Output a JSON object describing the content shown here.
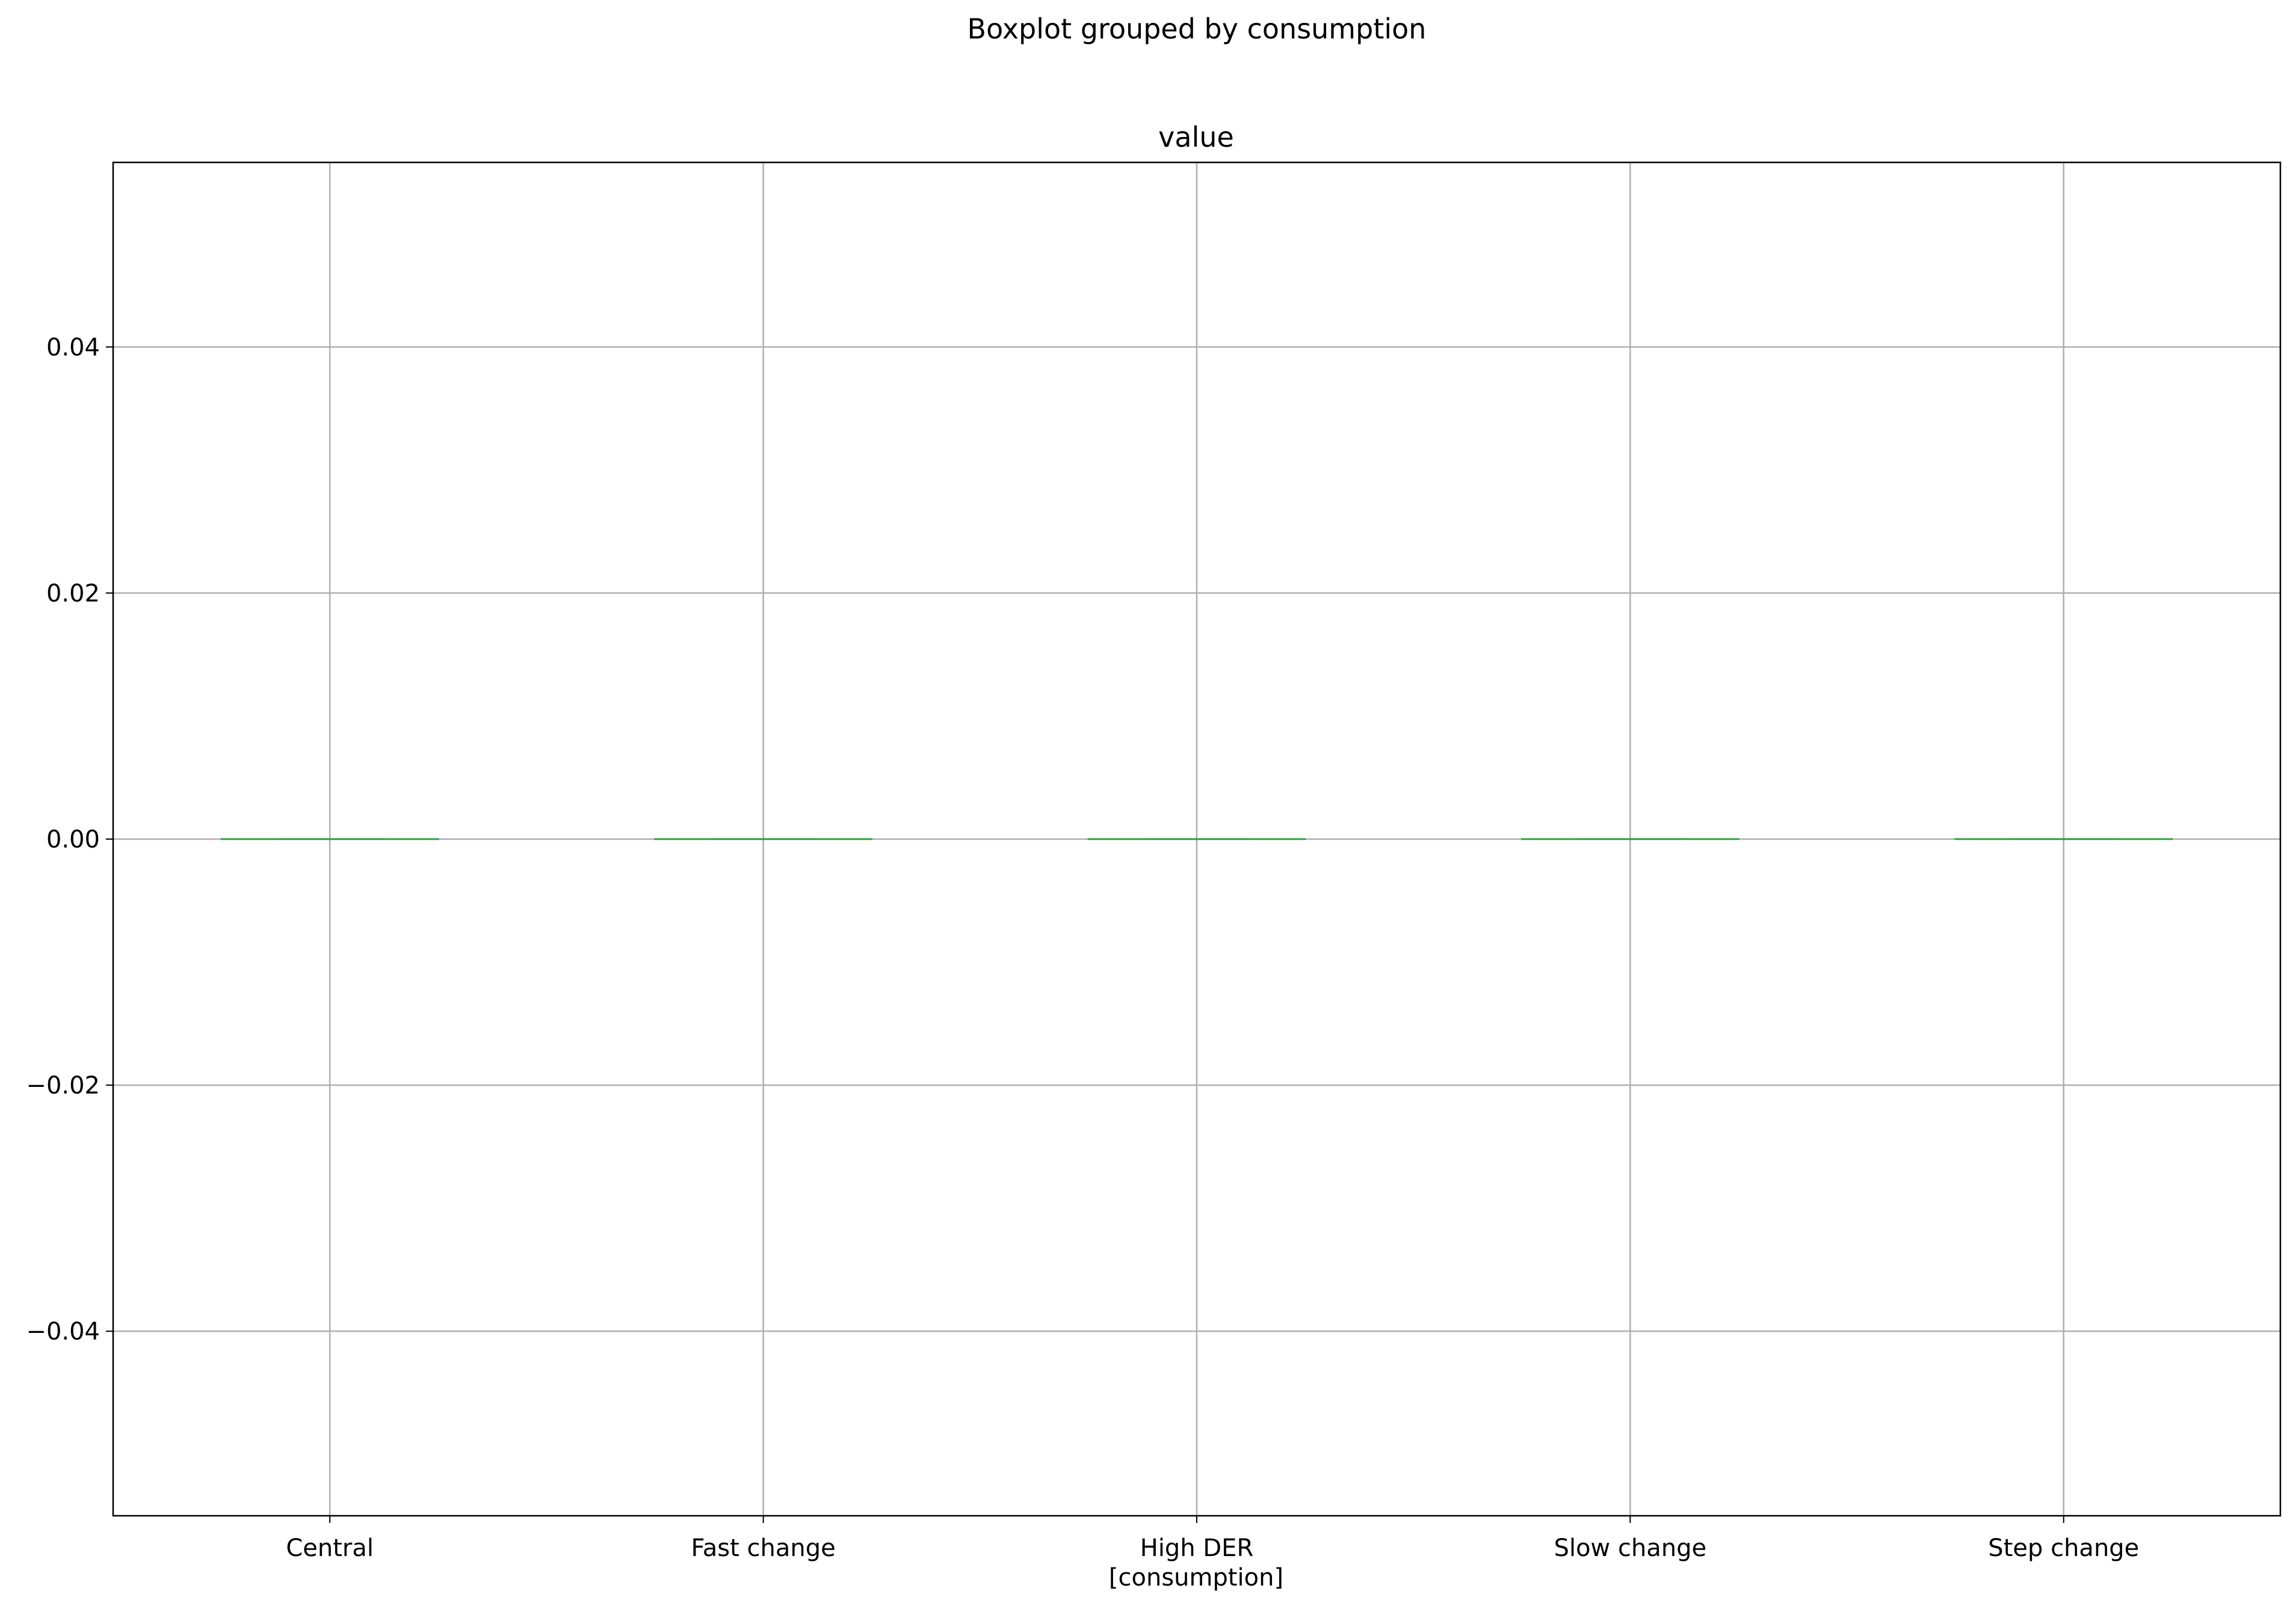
{
  "chart_data": {
    "type": "box",
    "suptitle": "Boxplot grouped by consumption",
    "title": "value",
    "xlabel": "[consumption]",
    "ylabel": "",
    "categories": [
      "Central",
      "Fast change",
      "High DER",
      "Slow change",
      "Step change"
    ],
    "boxes": [
      {
        "category": "Central",
        "min": 0.0,
        "q1": 0.0,
        "median": 0.0,
        "q3": 0.0,
        "max": 0.0
      },
      {
        "category": "Fast change",
        "min": 0.0,
        "q1": 0.0,
        "median": 0.0,
        "q3": 0.0,
        "max": 0.0
      },
      {
        "category": "High DER",
        "min": 0.0,
        "q1": 0.0,
        "median": 0.0,
        "q3": 0.0,
        "max": 0.0
      },
      {
        "category": "Slow change",
        "min": 0.0,
        "q1": 0.0,
        "median": 0.0,
        "q3": 0.0,
        "max": 0.0
      },
      {
        "category": "Step change",
        "min": 0.0,
        "q1": 0.0,
        "median": 0.0,
        "q3": 0.0,
        "max": 0.0
      }
    ],
    "ylim": [
      -0.055,
      0.055
    ],
    "yticks": [
      -0.04,
      -0.02,
      0.0,
      0.02,
      0.04
    ],
    "ytick_labels": [
      "−0.04",
      "−0.02",
      "0.00",
      "0.02",
      "0.04"
    ],
    "grid": true,
    "colors": {
      "box": "#1f77b4",
      "median": "#2ca02c",
      "grid": "#b0b0b0",
      "frame": "#000000"
    }
  }
}
